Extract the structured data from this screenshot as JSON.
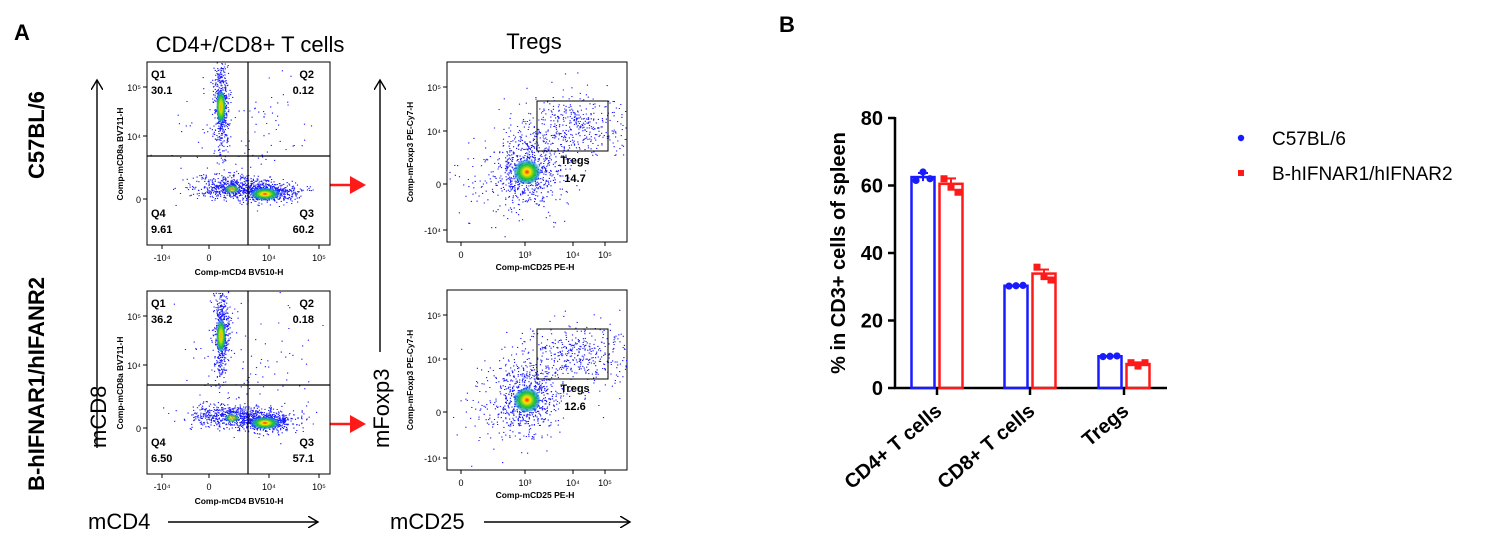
{
  "panel_labels": [
    "A",
    "B"
  ],
  "panel_a": {
    "col_titles": [
      "CD4+/CD8+ T cells",
      "Tregs"
    ],
    "row_labels": [
      "C57BL/6",
      "B-hIFNAR1/hIFANR2"
    ],
    "big_axis_labels": {
      "y1": "mCD8",
      "x1": "mCD4",
      "y2": "mFoxp3",
      "x2": "mCD25"
    },
    "quad_plot": {
      "ylabel": "Comp-mCD8a BV711-H",
      "xlabel": "Comp-mCD4 BV510-H",
      "xticks": [
        "-10⁴",
        "0",
        "10⁴",
        "10⁵"
      ],
      "yticks": [
        "10⁵",
        "10⁴",
        "0"
      ]
    },
    "treg_plot": {
      "ylabel": "Comp-mFoxp3 PE-Cy7-H",
      "xlabel": "Comp-mCD25 PE-H",
      "xticks": [
        "0",
        "10³",
        "10⁴",
        "10⁵"
      ],
      "yticks": [
        "10⁵",
        "10⁴",
        "0",
        "-10⁴"
      ]
    },
    "rows": [
      {
        "quadrants": [
          {
            "name": "Q1",
            "value": "30.1"
          },
          {
            "name": "Q2",
            "value": "0.12"
          },
          {
            "name": "Q3",
            "value": "60.2"
          },
          {
            "name": "Q4",
            "value": "9.61"
          }
        ],
        "treg_gate": {
          "name": "Tregs",
          "value": "14.7"
        }
      },
      {
        "quadrants": [
          {
            "name": "Q1",
            "value": "36.2"
          },
          {
            "name": "Q2",
            "value": "0.18"
          },
          {
            "name": "Q3",
            "value": "57.1"
          },
          {
            "name": "Q4",
            "value": "6.50"
          }
        ],
        "treg_gate": {
          "name": "Tregs",
          "value": "12.6"
        }
      }
    ],
    "colors": {
      "arrow": "#ff1a1a",
      "dots": "#1a1aff",
      "density_mid": "#19c23a",
      "density_high": "#ffe600",
      "density_peak": "#ff2000"
    }
  },
  "chart_data": {
    "type": "bar",
    "ylabel": "% in CD3+ cells of spleen",
    "xlabel": "",
    "ylim": [
      0,
      80
    ],
    "yticks": [
      "0",
      "20",
      "40",
      "60",
      "80"
    ],
    "categories": [
      "CD4+ T cells",
      "CD8+ T cells",
      "Tregs"
    ],
    "series": [
      {
        "name": "C57BL/6",
        "color": "#1a1aff",
        "marker": "circle",
        "values": [
          62.5,
          30.3,
          9.4
        ],
        "sem": [
          1.2,
          0.1,
          0.1
        ],
        "points": [
          [
            61.5,
            64.0,
            62.0
          ],
          [
            30.2,
            30.3,
            30.4
          ],
          [
            9.3,
            9.4,
            9.5
          ]
        ]
      },
      {
        "name": "B-hIFNAR1/hIFNAR2",
        "color": "#ff1a1a",
        "marker": "square",
        "values": [
          60.5,
          33.9,
          7.1
        ],
        "sem": [
          1.6,
          1.2,
          0.5
        ],
        "points": [
          [
            62.0,
            59.5,
            58.0
          ],
          [
            35.8,
            33.0,
            32.0
          ],
          [
            7.5,
            6.5,
            7.5
          ]
        ]
      }
    ],
    "legend_position": "top-right",
    "grid": false
  }
}
